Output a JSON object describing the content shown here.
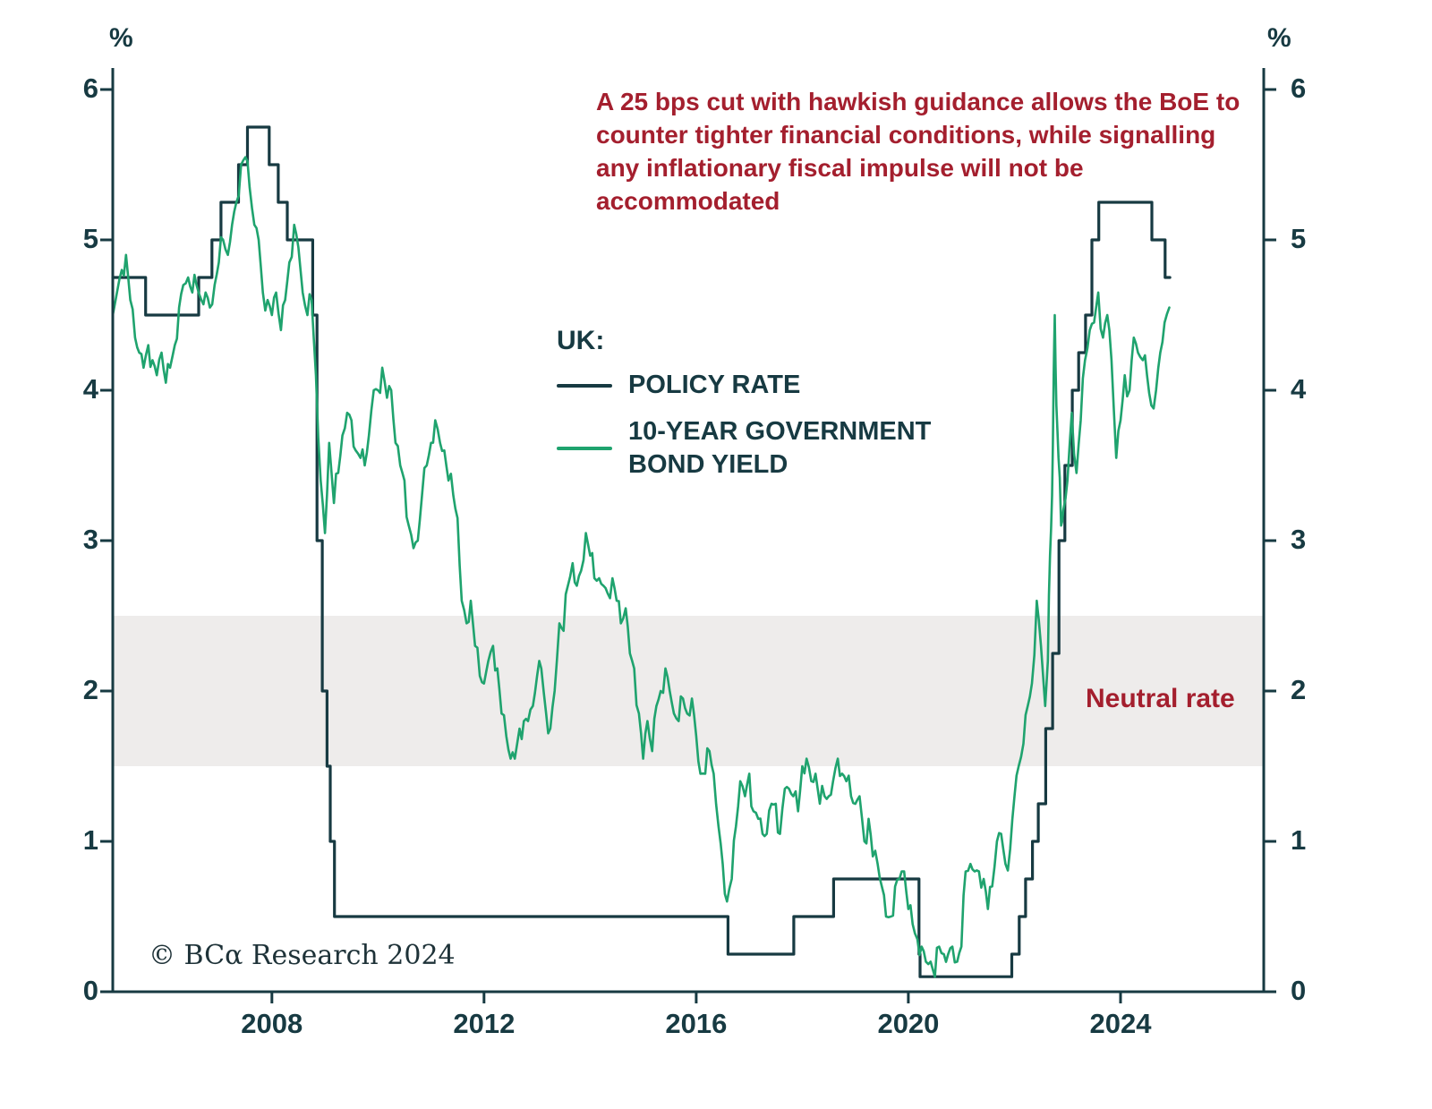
{
  "annotation": {
    "text": "A 25 bps cut with hawkish guidance allows the BoE to counter tighter financial conditions, while signalling any inflationary fiscal impulse will not be accommodated",
    "color": "#a41f2e"
  },
  "legend": {
    "title": "UK:",
    "items": [
      {
        "label": "POLICY RATE",
        "color": "#173a42"
      },
      {
        "label": "10-YEAR GOVERNMENT BOND YIELD",
        "color": "#1fa36e"
      }
    ]
  },
  "neutral_band": {
    "label": "Neutral rate",
    "from": 1.5,
    "to": 2.5,
    "fill": "#eeeceb",
    "label_color": "#a41f2e"
  },
  "footer": {
    "copyright": "© BCα Research 2024"
  },
  "chart_data": {
    "type": "line",
    "title": "",
    "y_axis_unit": "%",
    "axis_color": "#173a42",
    "grid": false,
    "legend_position": "center",
    "x_range": [
      2005,
      2026.7
    ],
    "y_range": [
      0,
      6
    ],
    "x_ticks": [
      2008,
      2012,
      2016,
      2020,
      2024
    ],
    "y_ticks": [
      0,
      1,
      2,
      3,
      4,
      5,
      6
    ],
    "series": [
      {
        "name": "POLICY RATE",
        "style": "step",
        "color": "#173a42",
        "points": [
          [
            2005.0,
            4.75
          ],
          [
            2005.62,
            4.5
          ],
          [
            2006.62,
            4.75
          ],
          [
            2006.87,
            5.0
          ],
          [
            2007.04,
            5.25
          ],
          [
            2007.37,
            5.5
          ],
          [
            2007.54,
            5.75
          ],
          [
            2007.95,
            5.5
          ],
          [
            2008.12,
            5.25
          ],
          [
            2008.29,
            5.0
          ],
          [
            2008.77,
            4.5
          ],
          [
            2008.85,
            3.0
          ],
          [
            2008.95,
            2.0
          ],
          [
            2009.04,
            1.5
          ],
          [
            2009.1,
            1.0
          ],
          [
            2009.18,
            0.5
          ],
          [
            2016.6,
            0.25
          ],
          [
            2017.84,
            0.5
          ],
          [
            2018.59,
            0.75
          ],
          [
            2020.2,
            0.25
          ],
          [
            2020.22,
            0.1
          ],
          [
            2021.95,
            0.25
          ],
          [
            2022.09,
            0.5
          ],
          [
            2022.21,
            0.75
          ],
          [
            2022.34,
            1.0
          ],
          [
            2022.45,
            1.25
          ],
          [
            2022.59,
            1.75
          ],
          [
            2022.72,
            2.25
          ],
          [
            2022.84,
            3.0
          ],
          [
            2022.95,
            3.5
          ],
          [
            2023.09,
            4.0
          ],
          [
            2023.21,
            4.25
          ],
          [
            2023.34,
            4.5
          ],
          [
            2023.46,
            5.0
          ],
          [
            2023.59,
            5.25
          ],
          [
            2024.59,
            5.0
          ],
          [
            2024.84,
            4.75
          ],
          [
            2024.93,
            4.75
          ]
        ]
      },
      {
        "name": "10-YEAR GOVERNMENT BOND YIELD",
        "style": "line",
        "color": "#1fa36e",
        "points": [
          [
            2005.0,
            4.5
          ],
          [
            2005.08,
            4.65
          ],
          [
            2005.17,
            4.8
          ],
          [
            2005.25,
            4.9
          ],
          [
            2005.33,
            4.6
          ],
          [
            2005.42,
            4.35
          ],
          [
            2005.5,
            4.25
          ],
          [
            2005.58,
            4.15
          ],
          [
            2005.67,
            4.3
          ],
          [
            2005.75,
            4.2
          ],
          [
            2005.83,
            4.1
          ],
          [
            2005.92,
            4.25
          ],
          [
            2006.0,
            4.05
          ],
          [
            2006.08,
            4.15
          ],
          [
            2006.17,
            4.3
          ],
          [
            2006.25,
            4.55
          ],
          [
            2006.33,
            4.7
          ],
          [
            2006.42,
            4.75
          ],
          [
            2006.5,
            4.65
          ],
          [
            2006.58,
            4.7
          ],
          [
            2006.67,
            4.6
          ],
          [
            2006.75,
            4.65
          ],
          [
            2006.83,
            4.55
          ],
          [
            2006.92,
            4.7
          ],
          [
            2007.0,
            4.85
          ],
          [
            2007.08,
            5.0
          ],
          [
            2007.17,
            4.9
          ],
          [
            2007.25,
            5.1
          ],
          [
            2007.33,
            5.25
          ],
          [
            2007.42,
            5.5
          ],
          [
            2007.5,
            5.55
          ],
          [
            2007.58,
            5.35
          ],
          [
            2007.67,
            5.1
          ],
          [
            2007.75,
            5.0
          ],
          [
            2007.83,
            4.65
          ],
          [
            2007.92,
            4.6
          ],
          [
            2008.0,
            4.5
          ],
          [
            2008.08,
            4.65
          ],
          [
            2008.17,
            4.4
          ],
          [
            2008.25,
            4.6
          ],
          [
            2008.33,
            4.85
          ],
          [
            2008.42,
            5.1
          ],
          [
            2008.5,
            4.95
          ],
          [
            2008.58,
            4.65
          ],
          [
            2008.67,
            4.5
          ],
          [
            2008.75,
            4.6
          ],
          [
            2008.83,
            4.1
          ],
          [
            2008.92,
            3.4
          ],
          [
            2009.0,
            3.05
          ],
          [
            2009.08,
            3.65
          ],
          [
            2009.17,
            3.25
          ],
          [
            2009.25,
            3.45
          ],
          [
            2009.33,
            3.7
          ],
          [
            2009.42,
            3.85
          ],
          [
            2009.5,
            3.8
          ],
          [
            2009.58,
            3.6
          ],
          [
            2009.67,
            3.55
          ],
          [
            2009.75,
            3.5
          ],
          [
            2009.83,
            3.7
          ],
          [
            2009.92,
            4.0
          ],
          [
            2010.0,
            4.0
          ],
          [
            2010.08,
            4.15
          ],
          [
            2010.17,
            3.95
          ],
          [
            2010.25,
            4.0
          ],
          [
            2010.33,
            3.65
          ],
          [
            2010.42,
            3.5
          ],
          [
            2010.5,
            3.4
          ],
          [
            2010.58,
            3.1
          ],
          [
            2010.67,
            2.95
          ],
          [
            2010.75,
            3.0
          ],
          [
            2010.83,
            3.3
          ],
          [
            2010.92,
            3.5
          ],
          [
            2011.0,
            3.65
          ],
          [
            2011.08,
            3.8
          ],
          [
            2011.17,
            3.65
          ],
          [
            2011.25,
            3.6
          ],
          [
            2011.33,
            3.4
          ],
          [
            2011.42,
            3.3
          ],
          [
            2011.5,
            3.15
          ],
          [
            2011.58,
            2.6
          ],
          [
            2011.67,
            2.45
          ],
          [
            2011.75,
            2.6
          ],
          [
            2011.83,
            2.3
          ],
          [
            2011.92,
            2.1
          ],
          [
            2012.0,
            2.05
          ],
          [
            2012.08,
            2.2
          ],
          [
            2012.17,
            2.3
          ],
          [
            2012.25,
            2.15
          ],
          [
            2012.33,
            1.85
          ],
          [
            2012.42,
            1.7
          ],
          [
            2012.5,
            1.55
          ],
          [
            2012.58,
            1.55
          ],
          [
            2012.67,
            1.75
          ],
          [
            2012.75,
            1.8
          ],
          [
            2012.83,
            1.8
          ],
          [
            2012.92,
            1.9
          ],
          [
            2013.0,
            2.1
          ],
          [
            2013.08,
            2.15
          ],
          [
            2013.17,
            1.85
          ],
          [
            2013.25,
            1.75
          ],
          [
            2013.33,
            2.0
          ],
          [
            2013.42,
            2.45
          ],
          [
            2013.5,
            2.4
          ],
          [
            2013.58,
            2.7
          ],
          [
            2013.67,
            2.85
          ],
          [
            2013.75,
            2.7
          ],
          [
            2013.83,
            2.8
          ],
          [
            2013.92,
            3.05
          ],
          [
            2014.0,
            2.9
          ],
          [
            2014.08,
            2.75
          ],
          [
            2014.17,
            2.75
          ],
          [
            2014.25,
            2.7
          ],
          [
            2014.33,
            2.65
          ],
          [
            2014.42,
            2.75
          ],
          [
            2014.5,
            2.6
          ],
          [
            2014.58,
            2.45
          ],
          [
            2014.67,
            2.55
          ],
          [
            2014.75,
            2.25
          ],
          [
            2014.83,
            2.15
          ],
          [
            2014.92,
            1.85
          ],
          [
            2015.0,
            1.55
          ],
          [
            2015.08,
            1.8
          ],
          [
            2015.17,
            1.6
          ],
          [
            2015.25,
            1.9
          ],
          [
            2015.33,
            2.0
          ],
          [
            2015.42,
            2.15
          ],
          [
            2015.5,
            2.0
          ],
          [
            2015.58,
            1.85
          ],
          [
            2015.67,
            1.8
          ],
          [
            2015.75,
            1.95
          ],
          [
            2015.83,
            1.85
          ],
          [
            2015.92,
            1.95
          ],
          [
            2016.0,
            1.7
          ],
          [
            2016.08,
            1.45
          ],
          [
            2016.17,
            1.45
          ],
          [
            2016.25,
            1.6
          ],
          [
            2016.33,
            1.45
          ],
          [
            2016.42,
            1.1
          ],
          [
            2016.5,
            0.85
          ],
          [
            2016.58,
            0.6
          ],
          [
            2016.67,
            0.75
          ],
          [
            2016.75,
            1.1
          ],
          [
            2016.83,
            1.4
          ],
          [
            2016.92,
            1.3
          ],
          [
            2017.0,
            1.45
          ],
          [
            2017.08,
            1.2
          ],
          [
            2017.17,
            1.15
          ],
          [
            2017.25,
            1.05
          ],
          [
            2017.33,
            1.05
          ],
          [
            2017.42,
            1.25
          ],
          [
            2017.5,
            1.25
          ],
          [
            2017.58,
            1.05
          ],
          [
            2017.67,
            1.35
          ],
          [
            2017.75,
            1.35
          ],
          [
            2017.83,
            1.3
          ],
          [
            2017.92,
            1.2
          ],
          [
            2018.0,
            1.5
          ],
          [
            2018.08,
            1.55
          ],
          [
            2018.17,
            1.4
          ],
          [
            2018.25,
            1.45
          ],
          [
            2018.33,
            1.25
          ],
          [
            2018.42,
            1.3
          ],
          [
            2018.5,
            1.3
          ],
          [
            2018.58,
            1.4
          ],
          [
            2018.67,
            1.55
          ],
          [
            2018.75,
            1.45
          ],
          [
            2018.83,
            1.4
          ],
          [
            2018.92,
            1.3
          ],
          [
            2019.0,
            1.25
          ],
          [
            2019.08,
            1.3
          ],
          [
            2019.17,
            1.0
          ],
          [
            2019.25,
            1.15
          ],
          [
            2019.33,
            0.9
          ],
          [
            2019.42,
            0.85
          ],
          [
            2019.5,
            0.7
          ],
          [
            2019.58,
            0.5
          ],
          [
            2019.67,
            0.5
          ],
          [
            2019.75,
            0.7
          ],
          [
            2019.83,
            0.75
          ],
          [
            2019.92,
            0.8
          ],
          [
            2020.0,
            0.55
          ],
          [
            2020.08,
            0.45
          ],
          [
            2020.17,
            0.35
          ],
          [
            2020.25,
            0.3
          ],
          [
            2020.33,
            0.2
          ],
          [
            2020.42,
            0.2
          ],
          [
            2020.5,
            0.1
          ],
          [
            2020.58,
            0.3
          ],
          [
            2020.67,
            0.25
          ],
          [
            2020.75,
            0.25
          ],
          [
            2020.83,
            0.3
          ],
          [
            2020.92,
            0.2
          ],
          [
            2021.0,
            0.3
          ],
          [
            2021.08,
            0.8
          ],
          [
            2021.17,
            0.85
          ],
          [
            2021.25,
            0.8
          ],
          [
            2021.33,
            0.8
          ],
          [
            2021.42,
            0.75
          ],
          [
            2021.5,
            0.55
          ],
          [
            2021.58,
            0.7
          ],
          [
            2021.67,
            1.0
          ],
          [
            2021.75,
            1.05
          ],
          [
            2021.83,
            0.85
          ],
          [
            2021.92,
            0.95
          ],
          [
            2022.0,
            1.3
          ],
          [
            2022.08,
            1.5
          ],
          [
            2022.17,
            1.65
          ],
          [
            2022.25,
            1.9
          ],
          [
            2022.33,
            2.05
          ],
          [
            2022.42,
            2.6
          ],
          [
            2022.5,
            2.3
          ],
          [
            2022.58,
            1.9
          ],
          [
            2022.63,
            2.2
          ],
          [
            2022.67,
            2.9
          ],
          [
            2022.71,
            3.3
          ],
          [
            2022.74,
            4.1
          ],
          [
            2022.76,
            4.5
          ],
          [
            2022.79,
            3.9
          ],
          [
            2022.83,
            3.55
          ],
          [
            2022.88,
            3.1
          ],
          [
            2022.92,
            3.2
          ],
          [
            2023.0,
            3.4
          ],
          [
            2023.08,
            3.85
          ],
          [
            2023.17,
            3.45
          ],
          [
            2023.25,
            3.8
          ],
          [
            2023.33,
            4.2
          ],
          [
            2023.42,
            4.4
          ],
          [
            2023.5,
            4.45
          ],
          [
            2023.58,
            4.65
          ],
          [
            2023.67,
            4.35
          ],
          [
            2023.75,
            4.5
          ],
          [
            2023.83,
            4.2
          ],
          [
            2023.92,
            3.55
          ],
          [
            2024.0,
            3.8
          ],
          [
            2024.08,
            4.1
          ],
          [
            2024.17,
            4.0
          ],
          [
            2024.25,
            4.35
          ],
          [
            2024.33,
            4.25
          ],
          [
            2024.42,
            4.2
          ],
          [
            2024.5,
            4.1
          ],
          [
            2024.58,
            3.9
          ],
          [
            2024.67,
            4.0
          ],
          [
            2024.75,
            4.25
          ],
          [
            2024.83,
            4.45
          ],
          [
            2024.92,
            4.55
          ]
        ]
      }
    ]
  }
}
